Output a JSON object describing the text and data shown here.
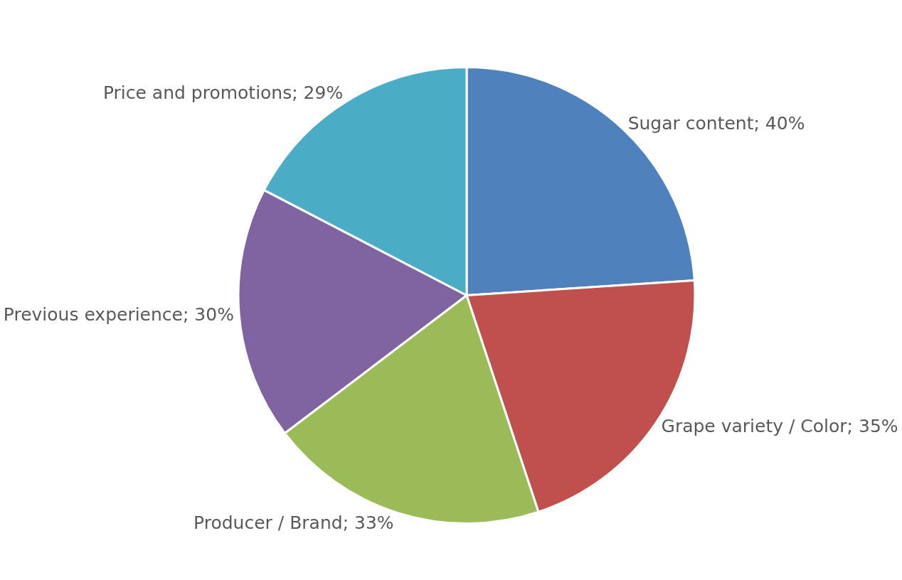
{
  "chart_data": {
    "type": "pie",
    "categories": [
      "Sugar content",
      "Grape variety / Color",
      "Producer / Brand",
      "Previous experience",
      "Price and promotions"
    ],
    "values": [
      40,
      35,
      33,
      30,
      29
    ],
    "colors": [
      "#4f81bd",
      "#c0504d",
      "#9bbb59",
      "#8064a2",
      "#4bacc6"
    ],
    "value_labels": [
      "; 40%",
      "; 35%",
      "; 33%",
      "; 30%",
      "; 29%"
    ],
    "legend": false
  }
}
